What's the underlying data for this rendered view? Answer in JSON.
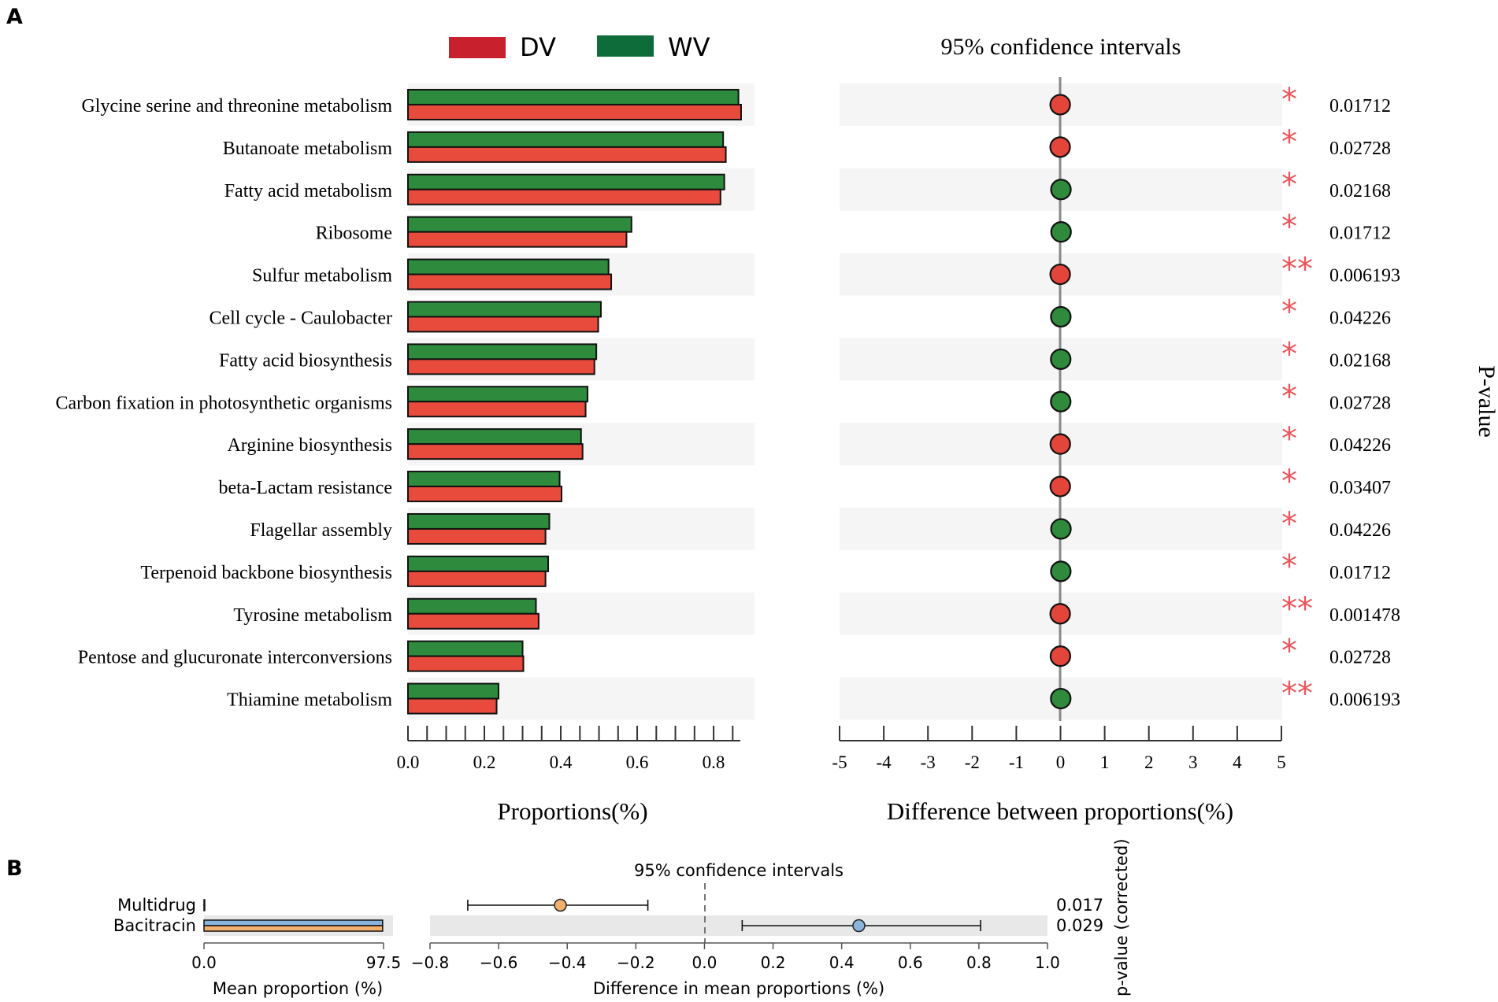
{
  "panel_a": {
    "label": "A",
    "legend": [
      {
        "name": "DV",
        "color": "#c8202c"
      },
      {
        "name": "WV",
        "color": "#0e6b3a"
      }
    ],
    "ci_title": "95% confidence intervals",
    "pvalue_axis_label": "P-value",
    "xlabel_left": "Proportions(%)",
    "xlabel_right": "Difference between proportions(%)"
  },
  "panel_b": {
    "label": "B",
    "ci_title": "95% confidence intervals",
    "xlabel_left": "Mean proportion (%)",
    "xlabel_right": "Difference in mean proportions (%)",
    "pvalue_axis_label": "p-value (corrected)"
  },
  "colors": {
    "dv_bar": "#e84a3c",
    "wv_bar": "#2e8b3e",
    "dv_dot": "#e4453a",
    "wv_dot": "#2f8a3b",
    "star": "#e8565a",
    "stripe": "#f5f5f5",
    "b_blue": "#8ab4dc",
    "b_orange": "#f3b06c",
    "b_stripe": "#e8e8e8"
  },
  "chart_data": [
    {
      "type": "bar",
      "title": "",
      "xlabel": "Proportions(%)",
      "xlim": [
        0,
        0.87
      ],
      "xticks": [
        "0.0",
        "0.2",
        "0.4",
        "0.6",
        "0.8"
      ],
      "categories": [
        "Glycine serine and threonine metabolism",
        "Butanoate metabolism",
        "Fatty acid metabolism",
        "Ribosome",
        "Sulfur metabolism",
        "Cell cycle - Caulobacter",
        "Fatty acid biosynthesis",
        "Carbon fixation in photosynthetic organisms",
        "Arginine biosynthesis",
        "beta-Lactam resistance",
        "Flagellar assembly",
        "Terpenoid backbone biosynthesis",
        "Tyrosine metabolism",
        "Pentose and glucuronate interconversions",
        "Thiamine metabolism"
      ],
      "series": [
        {
          "name": "WV",
          "values": [
            0.865,
            0.825,
            0.828,
            0.585,
            0.525,
            0.505,
            0.493,
            0.47,
            0.453,
            0.397,
            0.37,
            0.367,
            0.335,
            0.3,
            0.237
          ]
        },
        {
          "name": "DV",
          "values": [
            0.872,
            0.832,
            0.818,
            0.572,
            0.532,
            0.498,
            0.488,
            0.465,
            0.457,
            0.402,
            0.36,
            0.36,
            0.342,
            0.302,
            0.232
          ]
        }
      ]
    },
    {
      "type": "scatter",
      "title": "95% confidence intervals",
      "xlabel": "Difference between proportions(%)",
      "xlim": [
        -5,
        5
      ],
      "xticks": [
        "-5",
        "-4",
        "-3",
        "-2",
        "-1",
        "0",
        "1",
        "2",
        "3",
        "4",
        "5"
      ],
      "categories": [
        "Glycine serine and threonine metabolism",
        "Butanoate metabolism",
        "Fatty acid metabolism",
        "Ribosome",
        "Sulfur metabolism",
        "Cell cycle - Caulobacter",
        "Fatty acid biosynthesis",
        "Carbon fixation in photosynthetic organisms",
        "Arginine biosynthesis",
        "beta-Lactam resistance",
        "Flagellar assembly",
        "Terpenoid backbone biosynthesis",
        "Tyrosine metabolism",
        "Pentose and glucuronate interconversions",
        "Thiamine metabolism"
      ],
      "differences": [
        -0.007,
        -0.008,
        0.01,
        0.013,
        -0.007,
        0.007,
        0.005,
        0.005,
        -0.004,
        -0.005,
        0.01,
        0.007,
        -0.007,
        -0.002,
        0.005
      ],
      "enriched_in": [
        "DV",
        "DV",
        "WV",
        "WV",
        "DV",
        "WV",
        "WV",
        "WV",
        "DV",
        "DV",
        "WV",
        "WV",
        "DV",
        "DV",
        "WV"
      ],
      "significance": [
        "*",
        "*",
        "*",
        "*",
        "**",
        "*",
        "*",
        "*",
        "*",
        "*",
        "*",
        "*",
        "**",
        "*",
        "**"
      ],
      "p_values": [
        "0.01712",
        "0.02728",
        "0.02168",
        "0.01712",
        "0.006193",
        "0.04226",
        "0.02168",
        "0.02728",
        "0.04226",
        "0.03407",
        "0.04226",
        "0.01712",
        "0.001478",
        "0.02728",
        "0.006193"
      ]
    },
    {
      "type": "bar",
      "xlabel": "Mean proportion (%)",
      "xlim": [
        0,
        97.5
      ],
      "xticks": [
        "0.0",
        "97.5"
      ],
      "categories": [
        "Multidrug",
        "Bacitracin"
      ],
      "series": [
        {
          "name": "blue",
          "values": [
            0.4,
            97.0
          ]
        },
        {
          "name": "orange",
          "values": [
            0.4,
            97.0
          ]
        }
      ]
    },
    {
      "type": "scatter",
      "title": "95% confidence intervals",
      "xlabel": "Difference in mean proportions (%)",
      "xlim": [
        -0.8,
        1.0
      ],
      "xticks": [
        "−0.8",
        "−0.6",
        "−0.4",
        "−0.2",
        "0.0",
        "0.2",
        "0.4",
        "0.6",
        "0.8",
        "1.0"
      ],
      "categories": [
        "Multidrug",
        "Bacitracin"
      ],
      "estimates": [
        -0.42,
        0.45
      ],
      "ci_low": [
        -0.69,
        0.11
      ],
      "ci_high": [
        -0.165,
        0.805
      ],
      "p_values": [
        "0.017",
        "0.029"
      ]
    }
  ]
}
